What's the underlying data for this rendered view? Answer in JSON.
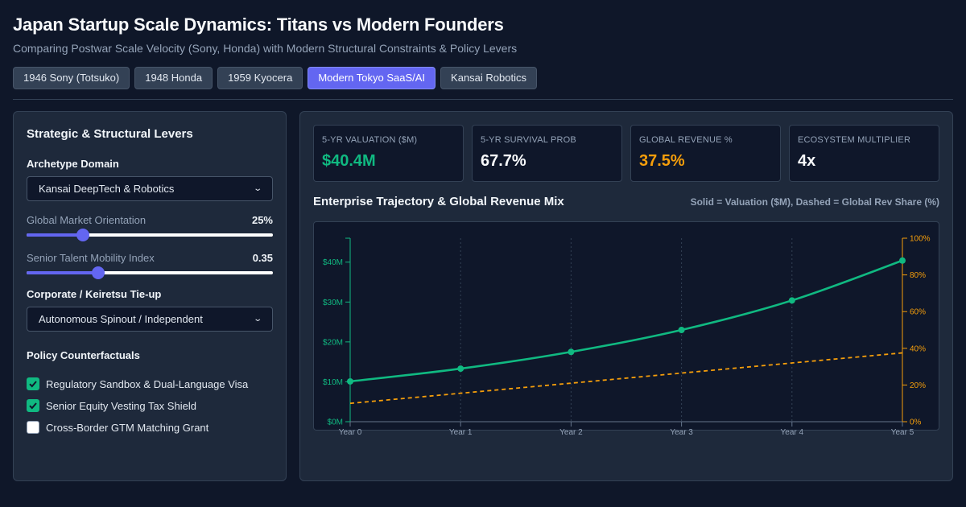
{
  "header": {
    "title": "Japan Startup Scale Dynamics: Titans vs Modern Founders",
    "subtitle": "Comparing Postwar Scale Velocity (Sony, Honda) with Modern Structural Constraints & Policy Levers"
  },
  "tabs": [
    {
      "label": "1946 Sony (Totsuko)",
      "active": false
    },
    {
      "label": "1948 Honda",
      "active": false
    },
    {
      "label": "1959 Kyocera",
      "active": false
    },
    {
      "label": "Modern Tokyo SaaS/AI",
      "active": true
    },
    {
      "label": "Kansai Robotics",
      "active": false
    }
  ],
  "levers": {
    "title": "Strategic & Structural Levers",
    "archetype_label": "Archetype Domain",
    "archetype_value": "Kansai DeepTech & Robotics",
    "global_label": "Global Market Orientation",
    "global_value_text": "25%",
    "global_fraction": 0.23,
    "talent_label": "Senior Talent Mobility Index",
    "talent_value_text": "0.35",
    "talent_fraction": 0.29,
    "keiretsu_label": "Corporate / Keiretsu Tie-up",
    "keiretsu_value": "Autonomous Spinout / Independent",
    "policy_title": "Policy Counterfactuals",
    "policies": [
      {
        "label": "Regulatory Sandbox & Dual-Language Visa",
        "checked": true
      },
      {
        "label": "Senior Equity Vesting Tax Shield",
        "checked": true
      },
      {
        "label": "Cross-Border GTM Matching Grant",
        "checked": false
      }
    ]
  },
  "kpis": [
    {
      "label": "5-YR VALUATION ($M)",
      "value": "$40.4M",
      "color": "#10b981"
    },
    {
      "label": "5-YR SURVIVAL PROB",
      "value": "67.7%",
      "color": "#f8fafc"
    },
    {
      "label": "GLOBAL REVENUE %",
      "value": "37.5%",
      "color": "#f59e0b"
    },
    {
      "label": "ECOSYSTEM MULTIPLIER",
      "value": "4x",
      "color": "#f8fafc"
    }
  ],
  "chart": {
    "title": "Enterprise Trajectory & Global Revenue Mix",
    "note": "Solid = Valuation ($M), Dashed = Global Rev Share (%)"
  },
  "colors": {
    "valuation": "#10b981",
    "share": "#f59e0b",
    "accent": "#6366f1"
  },
  "chart_data": {
    "type": "line",
    "categories": [
      "Year 0",
      "Year 1",
      "Year 2",
      "Year 3",
      "Year 4",
      "Year 5"
    ],
    "y_left": {
      "ticks": [
        "$0M",
        "$10M",
        "$20M",
        "$30M",
        "$40M"
      ],
      "range": [
        0,
        46
      ]
    },
    "y_right": {
      "ticks": [
        "0%",
        "20%",
        "40%",
        "60%",
        "80%",
        "100%"
      ],
      "range": [
        0,
        100
      ]
    },
    "series": [
      {
        "name": "Valuation ($M)",
        "axis": "left",
        "style": "solid",
        "values": [
          10.1,
          13.3,
          17.5,
          23.0,
          30.4,
          40.4
        ]
      },
      {
        "name": "Global Rev Share (%)",
        "axis": "right",
        "style": "dashed",
        "values": [
          10,
          15.5,
          21,
          26.5,
          32,
          37.5
        ]
      }
    ],
    "grid": "vertical dotted"
  }
}
